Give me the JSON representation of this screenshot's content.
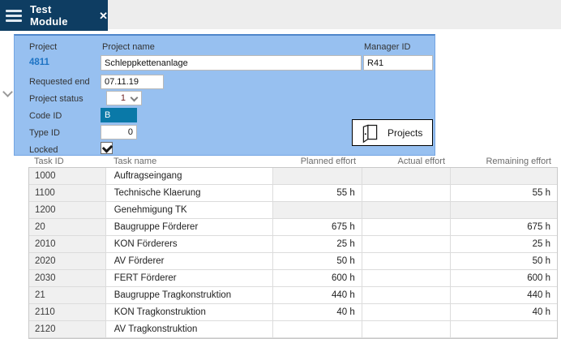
{
  "window": {
    "tab_title": "Test Module",
    "close_icon_glyph": "✕"
  },
  "project_panel": {
    "project_label": "Project",
    "project_value": "4811",
    "project_name_label": "Project name",
    "project_name_value": "Schleppkettenanlage",
    "manager_id_label": "Manager ID",
    "manager_id_value": "R41",
    "requested_end_label": "Requested end",
    "requested_end_value": "07.11.19",
    "project_status_label": "Project status",
    "project_status_value": "1",
    "code_id_label": "Code ID",
    "code_id_value": "B",
    "type_id_label": "Type ID",
    "type_id_value": "0",
    "locked_label": "Locked",
    "locked_checked": true,
    "projects_button_label": "Projects"
  },
  "task_table": {
    "columns": [
      "Task ID",
      "Task name",
      "Planned effort",
      "Actual effort",
      "Remaining effort"
    ],
    "rows": [
      {
        "task_id": "1000",
        "task_name": "Auftragseingang",
        "planned": "",
        "actual": "",
        "remaining": "",
        "efforts_disabled": true
      },
      {
        "task_id": "1100",
        "task_name": "Technische Klaerung",
        "planned": "55 h",
        "actual": "",
        "remaining": "55 h",
        "efforts_disabled": false
      },
      {
        "task_id": "1200",
        "task_name": "Genehmigung TK",
        "planned": "",
        "actual": "",
        "remaining": "",
        "efforts_disabled": true
      },
      {
        "task_id": "20",
        "task_name": "Baugruppe Förderer",
        "planned": "675 h",
        "actual": "",
        "remaining": "675 h",
        "efforts_disabled": false
      },
      {
        "task_id": "2010",
        "task_name": "KON Förderers",
        "planned": "25 h",
        "actual": "",
        "remaining": "25 h",
        "efforts_disabled": false
      },
      {
        "task_id": "2020",
        "task_name": "AV Förderer",
        "planned": "50 h",
        "actual": "",
        "remaining": "50 h",
        "efforts_disabled": false
      },
      {
        "task_id": "2030",
        "task_name": "FERT Förderer",
        "planned": "600 h",
        "actual": "",
        "remaining": "600 h",
        "efforts_disabled": false
      },
      {
        "task_id": "21",
        "task_name": "Baugruppe Tragkonstruktion",
        "planned": "440 h",
        "actual": "",
        "remaining": "440 h",
        "efforts_disabled": false
      },
      {
        "task_id": "2110",
        "task_name": "KON Tragkonstruktion",
        "planned": "40 h",
        "actual": "",
        "remaining": "40 h",
        "efforts_disabled": false
      },
      {
        "task_id": "2120",
        "task_name": "AV Tragkonstruktion",
        "planned": "",
        "actual": "",
        "remaining": "",
        "efforts_disabled": false
      }
    ]
  },
  "icons": {
    "hamburger": "menu",
    "close": "close",
    "door": "open-door",
    "chevron_down": "collapse-section"
  },
  "colors": {
    "tab_bg": "#0e3d62",
    "tabbar_bg": "#ededed",
    "panel_bg": "#97c0f0",
    "panel_border_top": "#4f86ca",
    "selected_field_bg": "#0a79a8",
    "project_link": "#1f74c4",
    "table_alt_cell": "#f0f0f0"
  }
}
